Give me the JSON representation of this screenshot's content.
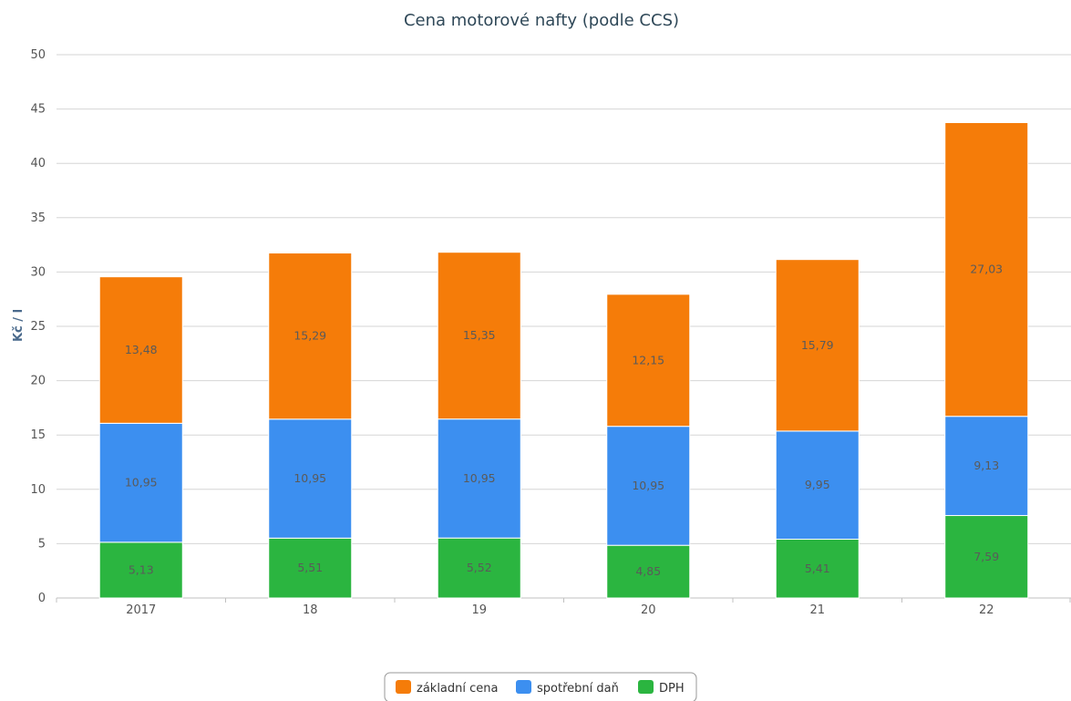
{
  "chart_data": {
    "type": "bar",
    "stacked": true,
    "title": "Cena motorové nafty (podle CCS)",
    "xlabel": "",
    "ylabel": "Kč / l",
    "ylim": [
      0,
      50
    ],
    "yticks": [
      "0",
      "5",
      "10",
      "15",
      "20",
      "25",
      "30",
      "35",
      "40",
      "45",
      "50"
    ],
    "grid": true,
    "legend_position": "bottom-center",
    "categories": [
      "2017",
      "18",
      "19",
      "20",
      "21",
      "22"
    ],
    "series": [
      {
        "name": "DPH",
        "color": "#2bb540",
        "values": [
          5.13,
          5.51,
          5.52,
          4.85,
          5.41,
          7.59
        ],
        "labels": [
          "5,13",
          "5,51",
          "5,52",
          "4,85",
          "5,41",
          "7,59"
        ]
      },
      {
        "name": "spotřební daň",
        "color": "#3c8ff0",
        "values": [
          10.95,
          10.95,
          10.95,
          10.95,
          9.95,
          9.13
        ],
        "labels": [
          "10,95",
          "10,95",
          "10,95",
          "10,95",
          "9,95",
          "9,13"
        ]
      },
      {
        "name": "základní cena",
        "color": "#f57c09",
        "values": [
          13.48,
          15.29,
          15.35,
          12.15,
          15.79,
          27.03
        ],
        "labels": [
          "13,48",
          "15,29",
          "15,35",
          "12,15",
          "15,79",
          "27,03"
        ]
      }
    ],
    "legend_order": [
      "základní cena",
      "spotřební daň",
      "DPH"
    ]
  }
}
